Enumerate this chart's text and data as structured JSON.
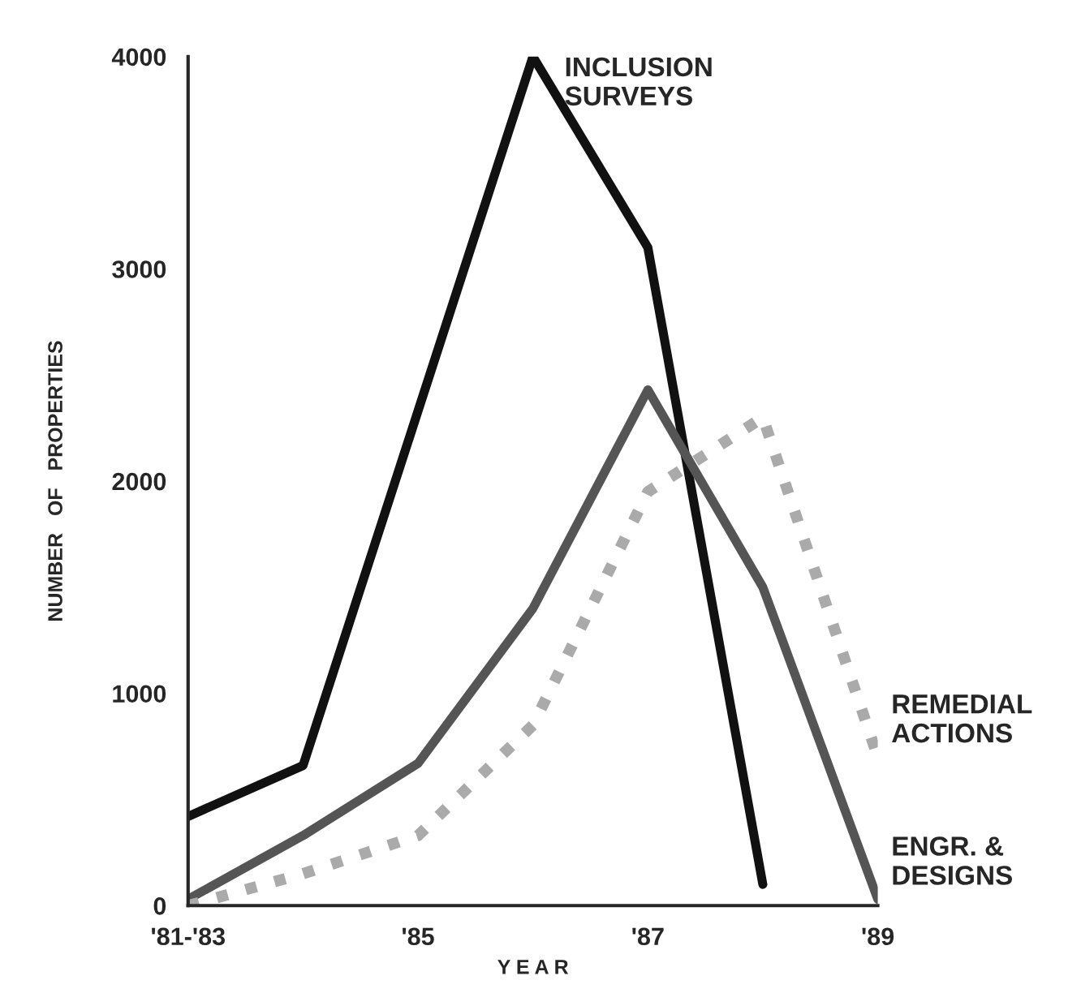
{
  "chart_data": {
    "type": "line",
    "xlabel": "Y E A R",
    "ylabel": "NUMBER   OF   PROPERTIES",
    "x": [
      83,
      84,
      85,
      86,
      87,
      88,
      89
    ],
    "xlim": [
      83,
      89
    ],
    "xticks": [
      {
        "value": 83,
        "label": "'81-'83"
      },
      {
        "value": 85,
        "label": "'85"
      },
      {
        "value": 87,
        "label": "'87"
      },
      {
        "value": 89,
        "label": "'89"
      }
    ],
    "ylim": [
      0,
      4000
    ],
    "yticks": [
      0,
      1000,
      2000,
      3000,
      4000
    ],
    "grid": false,
    "legend": false,
    "marker": "none",
    "series": [
      {
        "name": "INCLUSION\nSURVEYS",
        "color": "#111111",
        "line_style": "solid",
        "x": [
          83,
          84,
          86,
          87,
          88
        ],
        "values": [
          420,
          660,
          4000,
          3100,
          100
        ]
      },
      {
        "name": "ENGR. &\nDESIGNS",
        "color": "#555555",
        "line_style": "solid",
        "values": [
          30,
          330,
          670,
          1400,
          2430,
          1500,
          30
        ]
      },
      {
        "name": "REMEDIAL\nACTIONS",
        "color": "#aaaaaa",
        "line_style": "dotted",
        "values": [
          0,
          150,
          330,
          850,
          1950,
          2300,
          700
        ]
      }
    ]
  }
}
